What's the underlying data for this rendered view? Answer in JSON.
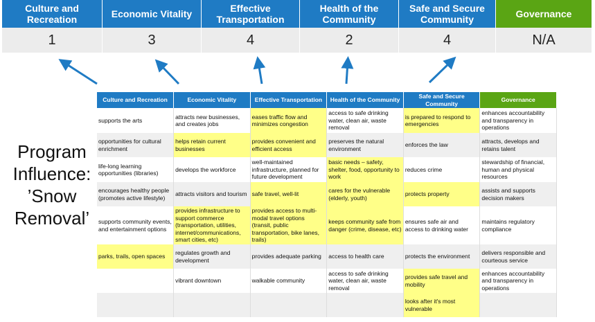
{
  "summary": {
    "columns": [
      {
        "label": "Culture and Recreation",
        "score": "1"
      },
      {
        "label": "Economic Vitality",
        "score": "3"
      },
      {
        "label": "Effective Transportation",
        "score": "4"
      },
      {
        "label": "Health of the Community",
        "score": "2"
      },
      {
        "label": "Safe and Secure Community",
        "score": "4"
      },
      {
        "label": "Governance",
        "score": "N/A"
      }
    ]
  },
  "side_title": [
    "Program",
    "Influence:",
    "’Snow",
    "Removal’"
  ],
  "colors": {
    "header_blue": "#1f7bc4",
    "governance_green": "#5aa514",
    "highlight": "#ffff88",
    "arrow": "#1f7bc4"
  },
  "table": {
    "headers": [
      "Culture and Recreation",
      "Economic Vitality",
      "Effective Transportation",
      "Health of the Community",
      "Safe and Secure Community",
      "Governance"
    ],
    "rows": [
      [
        {
          "t": "supports the arts"
        },
        {
          "t": "attracts new businesses, and creates jobs"
        },
        {
          "t": "eases traffic flow and minimizes congestion",
          "h": true
        },
        {
          "t": "access to safe drinking water, clean air, waste removal"
        },
        {
          "t": "is prepared to respond to emergencies",
          "h": true
        },
        {
          "t": "enhances accountability and transparency in operations"
        }
      ],
      [
        {
          "t": "opportunities for cultural enrichment"
        },
        {
          "t": "helps retain current businesses",
          "h": true
        },
        {
          "t": "provides convenient and efficient access",
          "h": true
        },
        {
          "t": "preserves the natural environment"
        },
        {
          "t": "enforces the law"
        },
        {
          "t": "attracts, develops and retains talent"
        }
      ],
      [
        {
          "t": "life-long learning opportunities (libraries)"
        },
        {
          "t": "develops the workforce"
        },
        {
          "t": "well-maintained infrastructure, planned for future development"
        },
        {
          "t": "basic needs – safety, shelter, food, opportunity to work",
          "h": true
        },
        {
          "t": "reduces crime"
        },
        {
          "t": "stewardship of financial, human and physical resources"
        }
      ],
      [
        {
          "t": "encourages healthy people (promotes active lifestyle)"
        },
        {
          "t": "attracts visitors and tourism"
        },
        {
          "t": "safe travel, well-lit",
          "h": true
        },
        {
          "t": "cares for the vulnerable (elderly, youth)",
          "h": true
        },
        {
          "t": "protects property",
          "h": true
        },
        {
          "t": "assists and supports decision makers"
        }
      ],
      [
        {
          "t": "supports community events, and entertainment options"
        },
        {
          "t": "provides infrastructure to support commerce (transportation, utilities, internet/communications, smart cities, etc)",
          "h": true
        },
        {
          "t": "provides access to multi-modal travel options (transit, public transportation, bike lanes, trails)",
          "h": true
        },
        {
          "t": "keeps community safe from danger (crime, disease, etc)",
          "h": true
        },
        {
          "t": "ensures safe air and access to drinking water"
        },
        {
          "t": "maintains regulatory compliance"
        }
      ],
      [
        {
          "t": "parks, trails, open spaces",
          "h": true
        },
        {
          "t": "regulates growth and development"
        },
        {
          "t": "provides adequate parking"
        },
        {
          "t": "access to health care"
        },
        {
          "t": "protects the environment"
        },
        {
          "t": "delivers responsible and courteous service"
        }
      ],
      [
        {
          "t": ""
        },
        {
          "t": "vibrant downtown"
        },
        {
          "t": "walkable community"
        },
        {
          "t": "access to safe drinking water, clean air, waste removal"
        },
        {
          "t": "provides safe travel and mobility",
          "h": true
        },
        {
          "t": "enhances accountability and transparency in operations"
        }
      ],
      [
        {
          "t": ""
        },
        {
          "t": ""
        },
        {
          "t": ""
        },
        {
          "t": ""
        },
        {
          "t": "looks after it's most vulnerable",
          "h": true
        },
        {
          "t": ""
        }
      ]
    ]
  }
}
